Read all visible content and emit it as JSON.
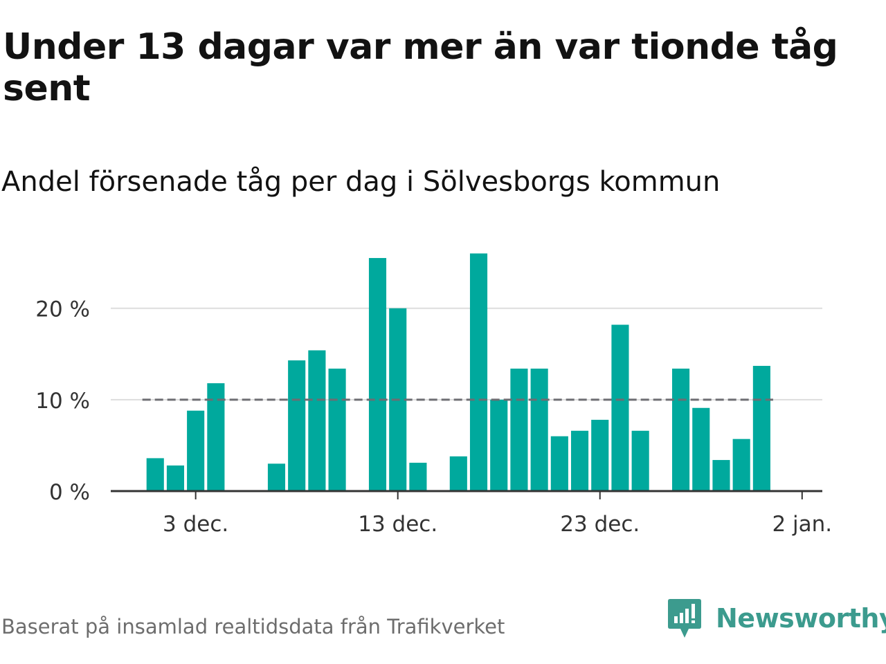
{
  "title": "Under 13 dagar var mer än var tionde tåg sent",
  "subtitle": "Andel försenade tåg per dag i Sölvesborgs kommun",
  "source": "Baserat på insamlad realtidsdata från Trafikverket",
  "brand": {
    "name": "Newsworthy",
    "logo_icon": "newsworthy-logo-icon"
  },
  "colors": {
    "bar": "#00a99d",
    "grid": "#dddddd",
    "axis": "#333333",
    "reference_line": "#6d6d72",
    "text": "#121212",
    "muted": "#6d6d6d",
    "brand": "#3c9b8e"
  },
  "chart_data": {
    "type": "bar",
    "title": "Under 13 dagar var mer än var tionde tåg sent",
    "subtitle": "Andel försenade tåg per dag i Sölvesborgs kommun",
    "xlabel": "",
    "ylabel": "",
    "x": [
      1,
      2,
      3,
      4,
      5,
      6,
      7,
      8,
      9,
      10,
      11,
      12,
      13,
      14,
      15,
      16,
      17,
      18,
      19,
      20,
      21,
      22,
      23,
      24,
      25,
      26,
      27,
      28,
      29,
      30,
      31,
      32
    ],
    "dates": [
      "1 dec.",
      "2 dec.",
      "3 dec.",
      "4 dec.",
      "5 dec.",
      "6 dec.",
      "7 dec.",
      "8 dec.",
      "9 dec.",
      "10 dec.",
      "11 dec.",
      "12 dec.",
      "13 dec.",
      "14 dec.",
      "15 dec.",
      "16 dec.",
      "17 dec.",
      "18 dec.",
      "19 dec.",
      "20 dec.",
      "21 dec.",
      "22 dec.",
      "23 dec.",
      "24 dec.",
      "25 dec.",
      "26 dec.",
      "27 dec.",
      "28 dec.",
      "29 dec.",
      "30 dec.",
      "31 dec.",
      "1 jan."
    ],
    "values": [
      3.6,
      2.8,
      8.8,
      11.8,
      null,
      null,
      3.0,
      14.3,
      15.4,
      13.4,
      null,
      25.5,
      20.0,
      3.1,
      null,
      3.8,
      26.0,
      10.0,
      13.4,
      13.4,
      6.0,
      6.6,
      7.8,
      18.2,
      6.6,
      null,
      13.4,
      9.1,
      3.4,
      5.7,
      13.7,
      null
    ],
    "x_ticks": [
      {
        "x": 3,
        "label": "3 dec."
      },
      {
        "x": 13,
        "label": "13 dec."
      },
      {
        "x": 23,
        "label": "23 dec."
      },
      {
        "x": 33,
        "label": "2 jan."
      }
    ],
    "xlim": [
      -1.2,
      34
    ],
    "y_ticks": [
      {
        "value": 0,
        "label": "0 %"
      },
      {
        "value": 10,
        "label": "10 %"
      },
      {
        "value": 20,
        "label": "20 %"
      }
    ],
    "ylim": [
      0,
      28
    ],
    "reference_line": {
      "value": 10,
      "style": "dashed"
    },
    "grid": true,
    "legend": "none"
  }
}
